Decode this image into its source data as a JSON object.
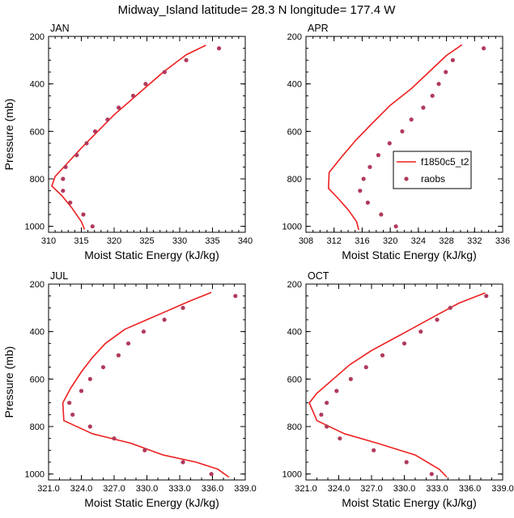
{
  "title": "Midway_Island  latitude= 28.3 N longitude= 177.4 W",
  "colors": {
    "model": "#ee1f1f",
    "obs": "#b03a5b"
  },
  "legend": {
    "panel": 1,
    "items": [
      {
        "label": "f1850c5_t2",
        "kind": "line"
      },
      {
        "label": "raobs",
        "kind": "marker"
      }
    ]
  },
  "chart_data": [
    {
      "type": "line",
      "panel": "JAN",
      "xlabel": "Moist Static Energy (kJ/kg)",
      "ylabel": "Pressure (mb)",
      "xlim": [
        310,
        340
      ],
      "xticks": [
        310,
        315,
        320,
        325,
        330,
        335,
        340
      ],
      "xtick_labels": [
        "310",
        "315",
        "320",
        "325",
        "330",
        "335",
        "340"
      ],
      "ylim": [
        1025,
        200
      ],
      "yticks": [
        200,
        400,
        600,
        800,
        1000
      ],
      "ytick_labels": [
        "200",
        "400",
        "600",
        "800",
        "1000"
      ],
      "series": [
        {
          "name": "f1850c5_t2",
          "kind": "line",
          "points": [
            [
              334.0,
              237
            ],
            [
              331.0,
              277
            ],
            [
              327.5,
              350
            ],
            [
              325.0,
              410
            ],
            [
              322.5,
              470
            ],
            [
              320.0,
              530
            ],
            [
              317.5,
              600
            ],
            [
              315.0,
              670
            ],
            [
              313.0,
              730
            ],
            [
              311.0,
              790
            ],
            [
              310.5,
              830
            ],
            [
              312.0,
              870
            ],
            [
              313.5,
              920
            ],
            [
              315.0,
              980
            ],
            [
              315.5,
              1013
            ]
          ]
        },
        {
          "name": "raobs",
          "kind": "marker",
          "points": [
            [
              336.0,
              250
            ],
            [
              331.0,
              300
            ],
            [
              327.7,
              350
            ],
            [
              324.8,
              400
            ],
            [
              322.9,
              450
            ],
            [
              320.7,
              500
            ],
            [
              319.0,
              550
            ],
            [
              317.1,
              600
            ],
            [
              315.8,
              650
            ],
            [
              314.3,
              700
            ],
            [
              312.6,
              750
            ],
            [
              312.2,
              800
            ],
            [
              312.2,
              850
            ],
            [
              313.3,
              900
            ],
            [
              315.3,
              950
            ],
            [
              316.7,
              1000
            ]
          ]
        }
      ]
    },
    {
      "type": "line",
      "panel": "APR",
      "xlabel": "Moist Static Energy (kJ/kg)",
      "ylabel": "Pressure (mb)",
      "xlim": [
        308,
        336
      ],
      "xticks": [
        308,
        312,
        316,
        320,
        324,
        328,
        332,
        336
      ],
      "xtick_labels": [
        "308",
        "312",
        "316",
        "320",
        "324",
        "328",
        "332",
        "336"
      ],
      "ylim": [
        1025,
        200
      ],
      "yticks": [
        200,
        400,
        600,
        800,
        1000
      ],
      "ytick_labels": [
        "200",
        "400",
        "600",
        "800",
        "1000"
      ],
      "series": [
        {
          "name": "f1850c5_t2",
          "kind": "line",
          "points": [
            [
              330.2,
              235
            ],
            [
              328.0,
              280
            ],
            [
              325.5,
              350
            ],
            [
              323.0,
              420
            ],
            [
              320.0,
              490
            ],
            [
              317.3,
              570
            ],
            [
              315.0,
              640
            ],
            [
              313.0,
              710
            ],
            [
              311.3,
              773
            ],
            [
              311.2,
              840
            ],
            [
              312.5,
              880
            ],
            [
              314.0,
              930
            ],
            [
              315.2,
              980
            ],
            [
              315.5,
              1015
            ]
          ]
        },
        {
          "name": "raobs",
          "kind": "marker",
          "points": [
            [
              333.3,
              250
            ],
            [
              328.9,
              300
            ],
            [
              327.9,
              350
            ],
            [
              326.9,
              400
            ],
            [
              326.0,
              450
            ],
            [
              324.7,
              500
            ],
            [
              323.0,
              550
            ],
            [
              321.7,
              600
            ],
            [
              319.9,
              650
            ],
            [
              318.3,
              700
            ],
            [
              317.1,
              750
            ],
            [
              316.2,
              800
            ],
            [
              315.7,
              850
            ],
            [
              316.8,
              900
            ],
            [
              318.7,
              950
            ],
            [
              320.8,
              1000
            ]
          ]
        }
      ]
    },
    {
      "type": "line",
      "panel": "JUL",
      "xlabel": "Moist Static Energy (kJ/kg)",
      "ylabel": "Pressure (mb)",
      "xlim": [
        321.0,
        339.0
      ],
      "xticks": [
        321,
        324,
        327,
        330,
        333,
        336,
        339
      ],
      "xtick_labels": [
        "321.0",
        "324.0",
        "327.0",
        "330.0",
        "333.0",
        "336.0",
        "339.0"
      ],
      "ylim": [
        1025,
        200
      ],
      "yticks": [
        200,
        400,
        600,
        800,
        1000
      ],
      "ytick_labels": [
        "200",
        "400",
        "600",
        "800",
        "1000"
      ],
      "series": [
        {
          "name": "f1850c5_t2",
          "kind": "line",
          "points": [
            [
              335.9,
              235
            ],
            [
              334.0,
              270
            ],
            [
              332.0,
              310
            ],
            [
              330.0,
              350
            ],
            [
              328.0,
              390
            ],
            [
              326.2,
              450
            ],
            [
              325.0,
              510
            ],
            [
              324.0,
              570
            ],
            [
              323.0,
              640
            ],
            [
              322.3,
              700
            ],
            [
              322.4,
              775
            ],
            [
              325.0,
              830
            ],
            [
              328.5,
              870
            ],
            [
              331.5,
              920
            ],
            [
              334.5,
              950
            ],
            [
              336.5,
              980
            ],
            [
              337.5,
              1013
            ]
          ]
        },
        {
          "name": "raobs",
          "kind": "marker",
          "points": [
            [
              338.1,
              250
            ],
            [
              333.3,
              300
            ],
            [
              331.6,
              350
            ],
            [
              329.7,
              400
            ],
            [
              328.3,
              450
            ],
            [
              327.4,
              500
            ],
            [
              326.0,
              550
            ],
            [
              324.8,
              600
            ],
            [
              324.0,
              650
            ],
            [
              322.9,
              700
            ],
            [
              323.2,
              750
            ],
            [
              324.8,
              800
            ],
            [
              327.0,
              850
            ],
            [
              329.8,
              900
            ],
            [
              333.3,
              950
            ],
            [
              335.9,
              1000
            ]
          ]
        }
      ]
    },
    {
      "type": "line",
      "panel": "OCT",
      "xlabel": "Moist Static Energy (kJ/kg)",
      "ylabel": "Pressure (mb)",
      "xlim": [
        321.0,
        339.0
      ],
      "xticks": [
        321,
        324,
        327,
        330,
        333,
        336,
        339
      ],
      "xtick_labels": [
        "321.0",
        "324.0",
        "327.0",
        "330.0",
        "333.0",
        "336.0",
        "339.0"
      ],
      "ylim": [
        1025,
        200
      ],
      "yticks": [
        200,
        400,
        600,
        800,
        1000
      ],
      "ytick_labels": [
        "200",
        "400",
        "600",
        "800",
        "1000"
      ],
      "series": [
        {
          "name": "f1850c5_t2",
          "kind": "line",
          "points": [
            [
              337.4,
              237
            ],
            [
              335.0,
              280
            ],
            [
              333.0,
              330
            ],
            [
              331.0,
              380
            ],
            [
              329.0,
              430
            ],
            [
              327.0,
              480
            ],
            [
              325.0,
              540
            ],
            [
              323.5,
              600
            ],
            [
              322.0,
              660
            ],
            [
              321.3,
              700
            ],
            [
              322.0,
              775
            ],
            [
              324.5,
              830
            ],
            [
              327.5,
              870
            ],
            [
              331.0,
              920
            ],
            [
              333.2,
              980
            ],
            [
              333.9,
              1013
            ]
          ]
        },
        {
          "name": "raobs",
          "kind": "marker",
          "points": [
            [
              337.5,
              250
            ],
            [
              334.2,
              300
            ],
            [
              333.0,
              350
            ],
            [
              331.5,
              400
            ],
            [
              330.0,
              450
            ],
            [
              328.0,
              500
            ],
            [
              326.5,
              550
            ],
            [
              325.1,
              600
            ],
            [
              323.8,
              650
            ],
            [
              322.9,
              700
            ],
            [
              322.4,
              750
            ],
            [
              322.9,
              800
            ],
            [
              324.1,
              850
            ],
            [
              327.2,
              900
            ],
            [
              330.2,
              950
            ],
            [
              332.5,
              1000
            ]
          ]
        }
      ]
    }
  ]
}
